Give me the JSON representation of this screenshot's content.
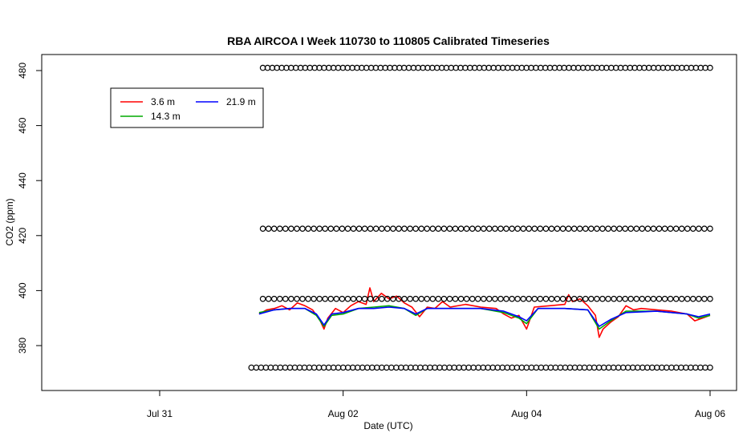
{
  "chart_data": {
    "type": "line",
    "title": "RBA AIRCOA I  Week 110730 to 110805  Calibrated Timeseries",
    "xlabel": "Date (UTC)",
    "ylabel": "CO2 (ppm)",
    "x_unit": "date (UTC)",
    "xlim": [
      "2011-07-30T04:00",
      "2011-08-06T04:00"
    ],
    "ylim": [
      372,
      485
    ],
    "x_ticks": [
      {
        "label": "Jul 31",
        "date": "2011-07-31T00:00"
      },
      {
        "label": "Aug 02",
        "date": "2011-08-02T00:00"
      },
      {
        "label": "Aug 04",
        "date": "2011-08-04T00:00"
      },
      {
        "label": "Aug 06",
        "date": "2011-08-06T00:00"
      }
    ],
    "y_ticks": [
      380,
      400,
      420,
      440,
      460,
      480
    ],
    "grid": false,
    "legend": {
      "placement": "top-left",
      "entries": [
        {
          "name": "3.6 m",
          "color": "#ff0000"
        },
        {
          "name": "21.9 m",
          "color": "#0000ff"
        },
        {
          "name": "14.3 m",
          "color": "#00aa00"
        }
      ]
    },
    "series": [
      {
        "name": "3.6 m",
        "color": "#ff0000",
        "points": [
          [
            "2011-08-01T02:00",
            391.5
          ],
          [
            "2011-08-01T04:00",
            393.0
          ],
          [
            "2011-08-01T06:00",
            393.5
          ],
          [
            "2011-08-01T08:00",
            394.5
          ],
          [
            "2011-08-01T10:00",
            393.0
          ],
          [
            "2011-08-01T12:00",
            395.5
          ],
          [
            "2011-08-01T14:00",
            394.5
          ],
          [
            "2011-08-01T16:00",
            393.0
          ],
          [
            "2011-08-01T18:00",
            389.0
          ],
          [
            "2011-08-01T19:00",
            386.0
          ],
          [
            "2011-08-01T20:00",
            390.0
          ],
          [
            "2011-08-01T22:00",
            393.5
          ],
          [
            "2011-08-02T00:00",
            392.0
          ],
          [
            "2011-08-02T02:00",
            394.5
          ],
          [
            "2011-08-02T04:00",
            396.0
          ],
          [
            "2011-08-02T06:00",
            395.0
          ],
          [
            "2011-08-02T07:00",
            401.0
          ],
          [
            "2011-08-02T08:00",
            396.0
          ],
          [
            "2011-08-02T10:00",
            399.0
          ],
          [
            "2011-08-02T12:00",
            397.0
          ],
          [
            "2011-08-02T14:00",
            398.0
          ],
          [
            "2011-08-02T16:00",
            395.5
          ],
          [
            "2011-08-02T18:00",
            394.0
          ],
          [
            "2011-08-02T20:00",
            390.5
          ],
          [
            "2011-08-02T22:00",
            394.0
          ],
          [
            "2011-08-03T00:00",
            393.5
          ],
          [
            "2011-08-03T02:00",
            396.0
          ],
          [
            "2011-08-03T04:00",
            394.0
          ],
          [
            "2011-08-03T08:00",
            395.0
          ],
          [
            "2011-08-03T12:00",
            394.0
          ],
          [
            "2011-08-03T16:00",
            393.5
          ],
          [
            "2011-08-03T18:00",
            391.5
          ],
          [
            "2011-08-03T20:00",
            390.0
          ],
          [
            "2011-08-03T22:00",
            391.0
          ],
          [
            "2011-08-04T00:00",
            386.0
          ],
          [
            "2011-08-04T02:00",
            394.0
          ],
          [
            "2011-08-04T06:00",
            394.5
          ],
          [
            "2011-08-04T10:00",
            395.0
          ],
          [
            "2011-08-04T11:00",
            398.5
          ],
          [
            "2011-08-04T12:00",
            396.0
          ],
          [
            "2011-08-04T14:00",
            397.0
          ],
          [
            "2011-08-04T16:00",
            394.5
          ],
          [
            "2011-08-04T18:00",
            391.0
          ],
          [
            "2011-08-04T19:00",
            383.0
          ],
          [
            "2011-08-04T20:00",
            386.0
          ],
          [
            "2011-08-04T22:00",
            388.5
          ],
          [
            "2011-08-05T00:00",
            390.5
          ],
          [
            "2011-08-05T02:00",
            394.5
          ],
          [
            "2011-08-05T04:00",
            393.0
          ],
          [
            "2011-08-05T06:00",
            393.5
          ],
          [
            "2011-08-05T10:00",
            393.0
          ],
          [
            "2011-08-05T14:00",
            392.5
          ],
          [
            "2011-08-05T18:00",
            391.5
          ],
          [
            "2011-08-05T20:00",
            389.0
          ],
          [
            "2011-08-05T22:00",
            390.0
          ],
          [
            "2011-08-06T00:00",
            391.0
          ]
        ]
      },
      {
        "name": "14.3 m",
        "color": "#00aa00",
        "points": [
          [
            "2011-08-01T02:00",
            392.0
          ],
          [
            "2011-08-01T06:00",
            393.0
          ],
          [
            "2011-08-01T10:00",
            393.5
          ],
          [
            "2011-08-01T14:00",
            393.5
          ],
          [
            "2011-08-01T17:00",
            391.0
          ],
          [
            "2011-08-01T19:00",
            387.0
          ],
          [
            "2011-08-01T21:00",
            391.0
          ],
          [
            "2011-08-02T00:00",
            391.5
          ],
          [
            "2011-08-02T04:00",
            393.5
          ],
          [
            "2011-08-02T08:00",
            394.0
          ],
          [
            "2011-08-02T12:00",
            394.5
          ],
          [
            "2011-08-02T16:00",
            393.5
          ],
          [
            "2011-08-02T19:00",
            391.0
          ],
          [
            "2011-08-02T22:00",
            393.5
          ],
          [
            "2011-08-03T04:00",
            393.5
          ],
          [
            "2011-08-03T12:00",
            393.5
          ],
          [
            "2011-08-03T18:00",
            392.0
          ],
          [
            "2011-08-03T22:00",
            390.0
          ],
          [
            "2011-08-04T00:00",
            388.0
          ],
          [
            "2011-08-04T03:00",
            393.5
          ],
          [
            "2011-08-04T10:00",
            393.5
          ],
          [
            "2011-08-04T16:00",
            393.0
          ],
          [
            "2011-08-04T19:00",
            386.0
          ],
          [
            "2011-08-04T22:00",
            389.0
          ],
          [
            "2011-08-05T02:00",
            392.5
          ],
          [
            "2011-08-05T10:00",
            392.5
          ],
          [
            "2011-08-05T18:00",
            391.5
          ],
          [
            "2011-08-05T21:00",
            390.0
          ],
          [
            "2011-08-06T00:00",
            391.0
          ]
        ]
      },
      {
        "name": "21.9 m",
        "color": "#0000ff",
        "points": [
          [
            "2011-08-01T02:00",
            391.5
          ],
          [
            "2011-08-01T06:00",
            393.0
          ],
          [
            "2011-08-01T10:00",
            393.5
          ],
          [
            "2011-08-01T14:00",
            393.5
          ],
          [
            "2011-08-01T17:00",
            391.5
          ],
          [
            "2011-08-01T19:00",
            387.5
          ],
          [
            "2011-08-01T21:00",
            391.5
          ],
          [
            "2011-08-02T00:00",
            392.0
          ],
          [
            "2011-08-02T04:00",
            393.5
          ],
          [
            "2011-08-02T08:00",
            393.5
          ],
          [
            "2011-08-02T12:00",
            394.0
          ],
          [
            "2011-08-02T16:00",
            393.5
          ],
          [
            "2011-08-02T19:00",
            391.5
          ],
          [
            "2011-08-02T22:00",
            393.5
          ],
          [
            "2011-08-03T04:00",
            393.5
          ],
          [
            "2011-08-03T12:00",
            393.5
          ],
          [
            "2011-08-03T18:00",
            392.5
          ],
          [
            "2011-08-03T22:00",
            390.5
          ],
          [
            "2011-08-04T00:00",
            389.0
          ],
          [
            "2011-08-04T03:00",
            393.5
          ],
          [
            "2011-08-04T10:00",
            393.5
          ],
          [
            "2011-08-04T16:00",
            393.0
          ],
          [
            "2011-08-04T19:00",
            387.0
          ],
          [
            "2011-08-04T22:00",
            389.5
          ],
          [
            "2011-08-05T02:00",
            392.0
          ],
          [
            "2011-08-05T10:00",
            392.5
          ],
          [
            "2011-08-05T18:00",
            391.5
          ],
          [
            "2011-08-05T21:00",
            390.5
          ],
          [
            "2011-08-06T00:00",
            391.5
          ]
        ]
      },
      {
        "name": "",
        "marker": "circle",
        "note_series": "standard",
        "points_level": 481,
        "x_range": [
          "2011-08-01T03:00",
          "2011-08-06T00:00"
        ],
        "count": 96
      },
      {
        "name": "",
        "marker": "circle",
        "points_level": 422.5,
        "x_range": [
          "2011-08-01T03:00",
          "2011-08-06T00:00"
        ],
        "count": 80
      },
      {
        "name": "",
        "marker": "circle",
        "points_level": 397,
        "x_range": [
          "2011-08-01T03:00",
          "2011-08-06T00:00"
        ],
        "count": 80
      },
      {
        "name": "",
        "marker": "circle",
        "points_level": 372,
        "x_range": [
          "2011-08-01T00:00",
          "2011-08-06T00:00"
        ],
        "count": 96
      }
    ]
  }
}
